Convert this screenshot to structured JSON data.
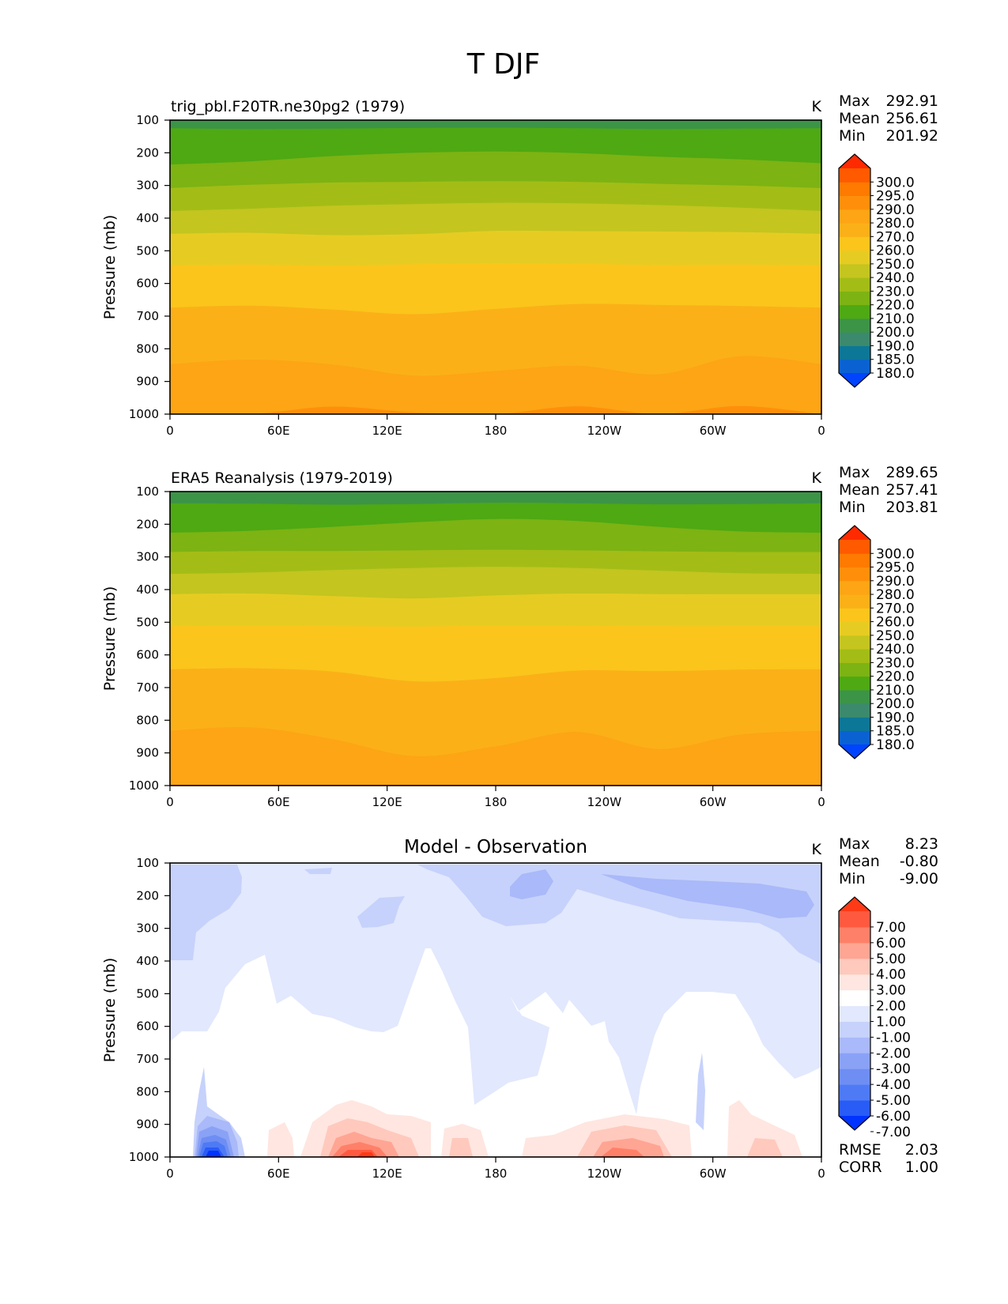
{
  "figure": {
    "title": "T DJF"
  },
  "color_maps": {
    "temperature": [
      "#0044ff",
      "#0a62d2",
      "#0c7797",
      "#3b8a6d",
      "#3c9447",
      "#4ea913",
      "#7db313",
      "#a3bd16",
      "#c4c51f",
      "#e6cc22",
      "#fbc51b",
      "#fbb018",
      "#fda514",
      "#ff8f0a",
      "#ff7a00",
      "#ff5a00",
      "#ff2a00"
    ],
    "difference": [
      "#0033ff",
      "#295bf7",
      "#4e7af5",
      "#6e8ef3",
      "#8aa2f5",
      "#a9b9f9",
      "#c6d2fb",
      "#e2e8fd",
      "#ffffff",
      "#ffe6e0",
      "#ffc9bd",
      "#ffa593",
      "#ff8068",
      "#ff5a40",
      "#ff3a16"
    ]
  },
  "chart_data": [
    {
      "type": "contour",
      "title": "trig_pbl.F20TR.ne30pg2 (1979)",
      "units": "K",
      "xlabel": "",
      "ylabel": "Pressure (mb)",
      "x_ticks": [
        "0",
        "60E",
        "120E",
        "180",
        "120W",
        "60W",
        "0"
      ],
      "y_ticks": [
        "100",
        "200",
        "300",
        "400",
        "500",
        "600",
        "700",
        "800",
        "900",
        "1000"
      ],
      "ylim": [
        1000,
        100
      ],
      "stats": {
        "max_label": "Max",
        "max": "292.91",
        "mean_label": "Mean",
        "mean": "256.61",
        "min_label": "Min",
        "min": "201.92"
      },
      "colorbar_labels": [
        "300.0",
        "295.0",
        "290.0",
        "280.0",
        "270.0",
        "260.0",
        "250.0",
        "240.0",
        "230.0",
        "220.0",
        "210.0",
        "200.0",
        "190.0",
        "185.0",
        "180.0"
      ],
      "levels": [
        180,
        185,
        190,
        200,
        210,
        220,
        230,
        240,
        250,
        260,
        270,
        280,
        290,
        295,
        300
      ],
      "boundaries": [
        {
          "level": 210,
          "p": [
            125,
            127,
            126,
            124,
            123,
            125,
            127,
            126,
            125
          ]
        },
        {
          "level": 220,
          "p": [
            236,
            226,
            210,
            200,
            196,
            201,
            212,
            220,
            232
          ]
        },
        {
          "level": 230,
          "p": [
            308,
            298,
            291,
            289,
            287,
            289,
            295,
            300,
            308
          ]
        },
        {
          "level": 240,
          "p": [
            378,
            371,
            362,
            357,
            353,
            355,
            360,
            368,
            378
          ]
        },
        {
          "level": 250,
          "p": [
            448,
            445,
            452,
            449,
            439,
            440,
            441,
            443,
            448
          ]
        },
        {
          "level": 260,
          "p": [
            544,
            542,
            545,
            541,
            538,
            540,
            543,
            542,
            544
          ]
        },
        {
          "level": 270,
          "p": [
            674,
            668,
            680,
            694,
            678,
            663,
            666,
            669,
            674
          ]
        },
        {
          "level": 280,
          "p": [
            847,
            833,
            848,
            882,
            868,
            852,
            878,
            823,
            847
          ]
        },
        {
          "level": 290,
          "p": [
            1000,
            1000,
            977,
            995,
            1000,
            976,
            1000,
            975,
            1000
          ]
        }
      ]
    },
    {
      "type": "contour",
      "title": "ERA5 Reanalysis (1979-2019)",
      "units": "K",
      "xlabel": "",
      "ylabel": "Pressure (mb)",
      "x_ticks": [
        "0",
        "60E",
        "120E",
        "180",
        "120W",
        "60W",
        "0"
      ],
      "y_ticks": [
        "100",
        "200",
        "300",
        "400",
        "500",
        "600",
        "700",
        "800",
        "900",
        "1000"
      ],
      "ylim": [
        1000,
        100
      ],
      "stats": {
        "max_label": "Max",
        "max": "289.65",
        "mean_label": "Mean",
        "mean": "257.41",
        "min_label": "Min",
        "min": "203.81"
      },
      "colorbar_labels": [
        "300.0",
        "295.0",
        "290.0",
        "280.0",
        "270.0",
        "260.0",
        "250.0",
        "240.0",
        "230.0",
        "220.0",
        "210.0",
        "200.0",
        "190.0",
        "185.0",
        "180.0"
      ],
      "levels": [
        180,
        185,
        190,
        200,
        210,
        220,
        230,
        240,
        250,
        260,
        270,
        280,
        290,
        295,
        300
      ],
      "boundaries": [
        {
          "level": 210,
          "p": [
            136,
            137,
            140,
            138,
            134,
            136,
            139,
            138,
            136
          ]
        },
        {
          "level": 220,
          "p": [
            226,
            220,
            208,
            194,
            184,
            190,
            208,
            222,
            226
          ]
        },
        {
          "level": 230,
          "p": [
            285,
            282,
            282,
            280,
            278,
            280,
            283,
            285,
            285
          ]
        },
        {
          "level": 240,
          "p": [
            352,
            348,
            340,
            334,
            330,
            334,
            342,
            350,
            352
          ]
        },
        {
          "level": 250,
          "p": [
            414,
            412,
            420,
            427,
            418,
            412,
            414,
            414,
            414
          ]
        },
        {
          "level": 260,
          "p": [
            512,
            510,
            512,
            513,
            510,
            511,
            512,
            512,
            512
          ]
        },
        {
          "level": 270,
          "p": [
            644,
            641,
            651,
            681,
            671,
            648,
            650,
            645,
            644
          ]
        },
        {
          "level": 280,
          "p": [
            832,
            822,
            858,
            910,
            880,
            836,
            888,
            844,
            832
          ]
        }
      ]
    },
    {
      "type": "contour",
      "title": "Model - Observation",
      "units": "K",
      "xlabel": "",
      "ylabel": "Pressure (mb)",
      "x_ticks": [
        "0",
        "60E",
        "120E",
        "180",
        "120W",
        "60W",
        "0"
      ],
      "y_ticks": [
        "100",
        "200",
        "300",
        "400",
        "500",
        "600",
        "700",
        "800",
        "900",
        "1000"
      ],
      "ylim": [
        1000,
        100
      ],
      "stats": {
        "max_label": "Max",
        "max": "8.23",
        "mean_label": "Mean",
        "mean": "-0.80",
        "min_label": "Min",
        "min": "-9.00"
      },
      "metrics": {
        "rmse_label": "RMSE",
        "rmse": "2.03",
        "corr_label": "CORR",
        "corr": "1.00"
      },
      "colorbar_labels": [
        "7.00",
        "6.00",
        "5.00",
        "4.00",
        "3.00",
        "2.00",
        "1.00",
        "-1.00",
        "-2.00",
        "-3.00",
        "-4.00",
        "-5.00",
        "-6.00",
        "-7.00"
      ],
      "levels": [
        -7,
        -6,
        -5,
        -4,
        -3,
        -2,
        -1,
        1,
        2,
        3,
        4,
        5,
        6,
        7
      ]
    }
  ]
}
